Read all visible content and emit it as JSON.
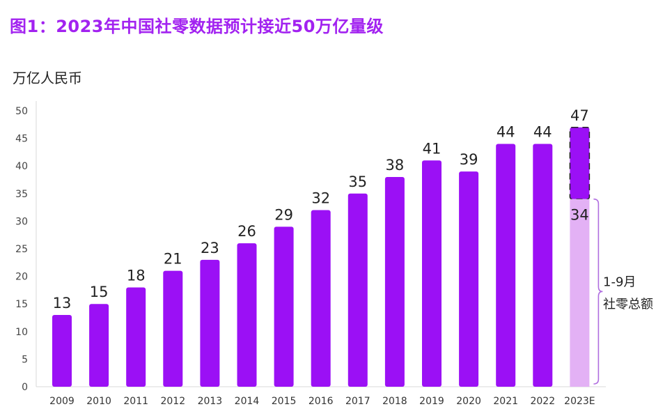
{
  "title": "图1：2023年中国社零数据预计接近50万亿量级",
  "unit_label": "万亿人民币",
  "chart_data": {
    "type": "bar",
    "title": "图1：2023年中国社零数据预计接近50万亿量级",
    "ylabel": "万亿人民币",
    "xlabel": "",
    "ylim": [
      0,
      50
    ],
    "yticks": [
      0,
      5,
      10,
      15,
      20,
      25,
      30,
      35,
      40,
      45,
      50
    ],
    "grid": false,
    "categories": [
      "2009",
      "2010",
      "2011",
      "2012",
      "2013",
      "2014",
      "2015",
      "2016",
      "2017",
      "2018",
      "2019",
      "2020",
      "2021",
      "2022",
      "2023E"
    ],
    "series": [
      {
        "values": [
          13,
          15,
          18,
          21,
          23,
          26,
          29,
          32,
          35,
          38,
          41,
          39,
          44,
          44,
          47
        ],
        "color": "#9b10f5"
      }
    ],
    "estimate": {
      "category": "2023E",
      "total": 47,
      "jan_sep_value": 34,
      "jan_sep_color": "#e3b1f5",
      "annotation_line1": "1-9月",
      "annotation_line2": "社零总额"
    }
  }
}
